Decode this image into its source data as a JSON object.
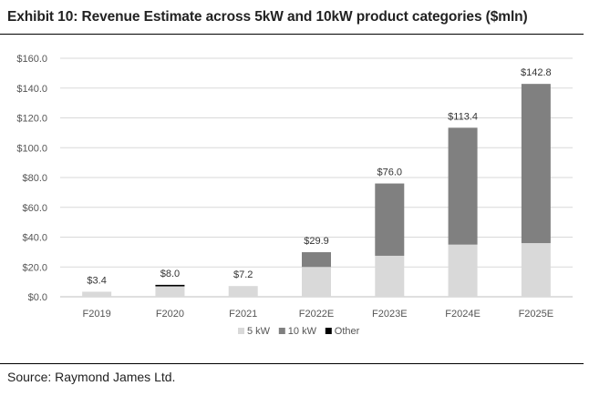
{
  "title": "Exhibit 10: Revenue Estimate across 5kW and 10kW product categories ($mln)",
  "source": "Source: Raymond James Ltd.",
  "chart_data": {
    "type": "bar",
    "stacked": true,
    "title": "Exhibit 10: Revenue Estimate across 5kW and 10kW product categories ($mln)",
    "categories": [
      "F2019",
      "F2020",
      "F2021",
      "F2022E",
      "F2023E",
      "F2024E",
      "F2025E"
    ],
    "series": [
      {
        "name": "5 kW",
        "color": "#d9d9d9",
        "values": [
          3.4,
          7.0,
          7.2,
          20.0,
          27.5,
          35.0,
          36.0
        ]
      },
      {
        "name": "10 kW",
        "color": "#808080",
        "values": [
          0.0,
          0.0,
          0.0,
          9.9,
          48.5,
          78.4,
          106.8
        ]
      },
      {
        "name": "Other",
        "color": "#000000",
        "values": [
          0.0,
          1.0,
          0.0,
          0.0,
          0.0,
          0.0,
          0.0
        ]
      }
    ],
    "totals_labels": [
      "$3.4",
      "$8.0",
      "$7.2",
      "$29.9",
      "$76.0",
      "$113.4",
      "$142.8"
    ],
    "yticks": [
      "$0.0",
      "$20.0",
      "$40.0",
      "$60.0",
      "$80.0",
      "$100.0",
      "$120.0",
      "$140.0",
      "$160.0"
    ],
    "ylim": [
      0,
      160
    ],
    "grid": true,
    "legend_position": "bottom"
  }
}
